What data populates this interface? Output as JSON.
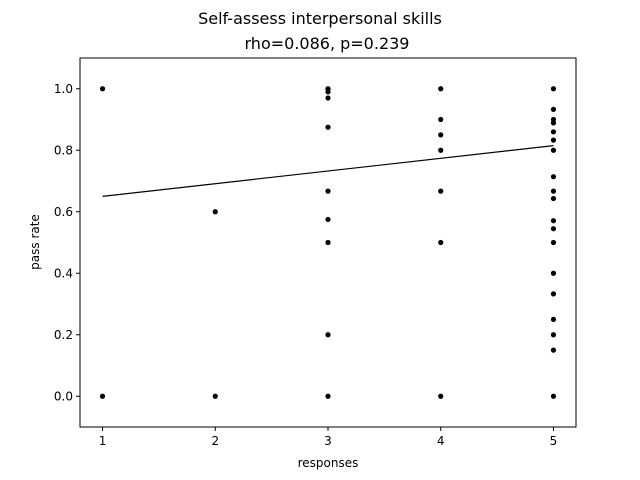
{
  "chart_data": {
    "type": "scatter",
    "title": "Self-assess interpersonal skills",
    "subtitle": "rho=0.086, p=0.239",
    "xlabel": "responses",
    "ylabel": "pass rate",
    "xlim": [
      0.8,
      5.2
    ],
    "ylim": [
      -0.1,
      1.1
    ],
    "xticks": [
      "1",
      "2",
      "3",
      "4",
      "5"
    ],
    "yticks": [
      "0.0",
      "0.2",
      "0.4",
      "0.6",
      "0.8",
      "1.0"
    ],
    "grid": false,
    "point_color": "#000000",
    "points": [
      {
        "x": 1,
        "y": 1.0
      },
      {
        "x": 1,
        "y": 0.0
      },
      {
        "x": 2,
        "y": 0.6
      },
      {
        "x": 2,
        "y": 0.0
      },
      {
        "x": 3,
        "y": 1.0
      },
      {
        "x": 3,
        "y": 0.99
      },
      {
        "x": 3,
        "y": 0.97
      },
      {
        "x": 3,
        "y": 0.875
      },
      {
        "x": 3,
        "y": 0.667
      },
      {
        "x": 3,
        "y": 0.575
      },
      {
        "x": 3,
        "y": 0.5
      },
      {
        "x": 3,
        "y": 0.2
      },
      {
        "x": 3,
        "y": 0.0
      },
      {
        "x": 4,
        "y": 1.0
      },
      {
        "x": 4,
        "y": 0.9
      },
      {
        "x": 4,
        "y": 0.85
      },
      {
        "x": 4,
        "y": 0.8
      },
      {
        "x": 4,
        "y": 0.667
      },
      {
        "x": 4,
        "y": 0.5
      },
      {
        "x": 4,
        "y": 0.0
      },
      {
        "x": 5,
        "y": 1.0
      },
      {
        "x": 5,
        "y": 0.933
      },
      {
        "x": 5,
        "y": 0.9
      },
      {
        "x": 5,
        "y": 0.889
      },
      {
        "x": 5,
        "y": 0.86
      },
      {
        "x": 5,
        "y": 0.833
      },
      {
        "x": 5,
        "y": 0.8
      },
      {
        "x": 5,
        "y": 0.714
      },
      {
        "x": 5,
        "y": 0.667
      },
      {
        "x": 5,
        "y": 0.643
      },
      {
        "x": 5,
        "y": 0.571
      },
      {
        "x": 5,
        "y": 0.545
      },
      {
        "x": 5,
        "y": 0.5
      },
      {
        "x": 5,
        "y": 0.4
      },
      {
        "x": 5,
        "y": 0.333
      },
      {
        "x": 5,
        "y": 0.25
      },
      {
        "x": 5,
        "y": 0.2
      },
      {
        "x": 5,
        "y": 0.15
      },
      {
        "x": 5,
        "y": 0.0
      }
    ],
    "fit_line": {
      "x": [
        1,
        5
      ],
      "y": [
        0.65,
        0.815
      ]
    }
  }
}
